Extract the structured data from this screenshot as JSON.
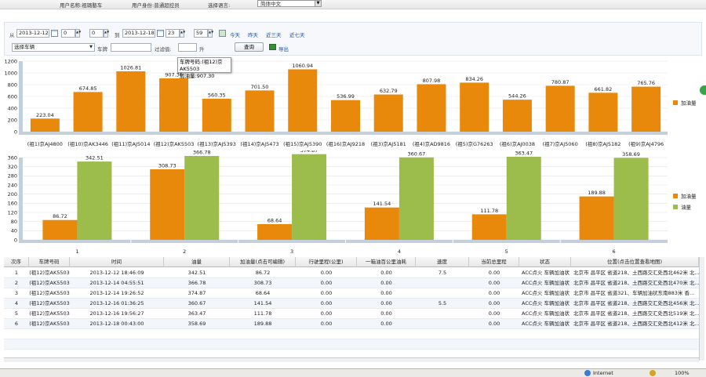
{
  "topbar": {
    "user_name": "用户名称:祖璐憨车",
    "user_role": "用户身份:普通超控员",
    "lang_label": "选择语言:",
    "lang_value": "简体中文"
  },
  "filter": {
    "from_label": "从",
    "from_date": "2013-12-12",
    "from_h": "0",
    "from_m": "0",
    "to_label": "到",
    "to_date": "2013-12-18",
    "to_h": "23",
    "to_m": "59",
    "today": "今天",
    "yesterday": "昨天",
    "last3": "近三天",
    "last7": "近七天",
    "vehicle_select": "选择车辆",
    "plate_label": "车牌",
    "plate_value": "",
    "filter_label": "过滤值:",
    "filter_value": "",
    "unit": "升",
    "query_button": "查询",
    "export_button": "导出"
  },
  "tooltip": {
    "line1": "车牌号码:(祖12)京AK5503",
    "line2": "加油量:907.30"
  },
  "chart_data": [
    {
      "type": "bar",
      "categories": [
        "(祖1)京AJ4800",
        "(祖10)京AK3446",
        "(祖11)京AJ5014",
        "(祖12)京AK5503",
        "(祖13)京AJ5393",
        "(祖14)京AJ5473",
        "(祖15)京AJ5390",
        "(祖16)京AJ9218",
        "(祖3)京AJ5181",
        "(祖4)京AD9816",
        "(祖5)京G76263",
        "(祖6)京AJ0038",
        "(祖7)京AJ5060",
        "(祖8)京AJ5182",
        "(祖9)京AJ4796"
      ],
      "series": [
        {
          "name": "加油量",
          "color": "#e8890c",
          "values": [
            223.04,
            674.85,
            1026.81,
            907.3,
            560.35,
            701.5,
            1060.94,
            536.99,
            632.79,
            807.98,
            834.26,
            544.26,
            780.87,
            661.82,
            765.76
          ]
        }
      ],
      "ylim": [
        0,
        1200
      ],
      "yticks": [
        0,
        200,
        400,
        600,
        800,
        1000,
        1200
      ],
      "legend": "right"
    },
    {
      "type": "bar",
      "categories": [
        "1",
        "2",
        "3",
        "4",
        "5",
        "6"
      ],
      "series": [
        {
          "name": "加油量",
          "color": "#e8890c",
          "values": [
            86.72,
            308.73,
            68.64,
            141.54,
            111.78,
            189.88
          ]
        },
        {
          "name": "油量",
          "color": "#9cbc4c",
          "values": [
            342.51,
            366.78,
            374.87,
            360.67,
            363.47,
            358.69
          ]
        }
      ],
      "ylim": [
        0,
        360
      ],
      "yticks": [
        0,
        40,
        80,
        120,
        160,
        200,
        240,
        280,
        320,
        360
      ],
      "legend": "right"
    }
  ],
  "grid": {
    "headers": [
      "次序",
      "车牌号码",
      "时间",
      "油量",
      "加油量(点击可编辑)",
      "行驶里程(公里)",
      "一箱油百公里油耗",
      "速度",
      "当前总里程",
      "状态",
      "位置(点击位置查看地图)"
    ],
    "rows": [
      [
        "1",
        "(祖12)京AK5503",
        "2013-12-12 18:46:09",
        "342.51",
        "86.72",
        "0.00",
        "0.00",
        "7.5",
        "0.00",
        "ACC点火 车辆加油状",
        "北京市 昌平区 省道218、土西路交汇处西北462米 北..."
      ],
      [
        "2",
        "(祖12)京AK5503",
        "2013-12-14 04:55:51",
        "366.78",
        "308.73",
        "0.00",
        "0.00",
        "",
        "0.00",
        "ACC点火 车辆加油状",
        "北京市 昌平区 省道218、土西路交汇处西北470米 北..."
      ],
      [
        "3",
        "(祖12)京AK5503",
        "2013-12-14 19:26:52",
        "374.87",
        "68.64",
        "0.00",
        "0.00",
        "",
        "0.00",
        "ACC点火 车辆加油状",
        "北京市 昌平区 省道321、车辆加油状东南883米 香..."
      ],
      [
        "4",
        "(祖12)京AK5503",
        "2013-12-16 01:36:25",
        "360.67",
        "141.54",
        "0.00",
        "0.00",
        "5.5",
        "0.00",
        "ACC点火 车辆加油状",
        "北京市 昌平区 省道218、土西路交汇处西北456米 北..."
      ],
      [
        "5",
        "(祖12)京AK5503",
        "2013-12-16 19:56:27",
        "363.47",
        "111.78",
        "0.00",
        "0.00",
        "",
        "0.00",
        "ACC点火 车辆加油状",
        "北京市 昌平区 省道218、土西路交汇处西北519米 北..."
      ],
      [
        "6",
        "(祖12)京AK5503",
        "2013-12-18 00:43:00",
        "358.69",
        "189.88",
        "0.00",
        "0.00",
        "",
        "0.00",
        "ACC点火 车辆加油状",
        "北京市 昌平区 省道218、土西路交汇处西北412米 北..."
      ]
    ]
  },
  "status": {
    "zone": "Internet",
    "zoom": "100%"
  }
}
